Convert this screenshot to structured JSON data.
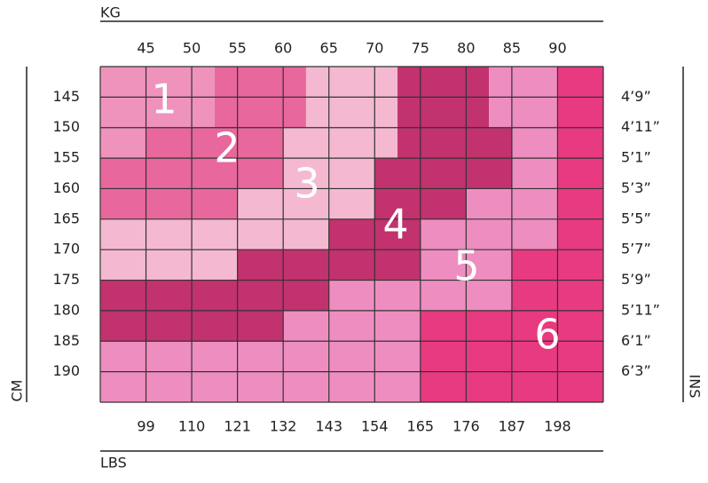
{
  "axes": {
    "top_label": "KG",
    "bottom_label": "LBS",
    "left_label": "CM",
    "right_label": "INS"
  },
  "kg": [
    45,
    50,
    55,
    60,
    65,
    70,
    75,
    80,
    85,
    90
  ],
  "lbs": [
    99,
    110,
    121,
    132,
    143,
    154,
    165,
    176,
    187,
    198
  ],
  "cm": [
    145,
    150,
    155,
    160,
    165,
    170,
    175,
    180,
    185,
    190
  ],
  "ins": [
    "4’9”",
    "4’11”",
    "5’1”",
    "5’3”",
    "5’5”",
    "5’7”",
    "5’9”",
    "5’11”",
    "6’1”",
    "6’3”"
  ],
  "zones": [
    "1",
    "2",
    "3",
    "4",
    "5",
    "6"
  ]
}
